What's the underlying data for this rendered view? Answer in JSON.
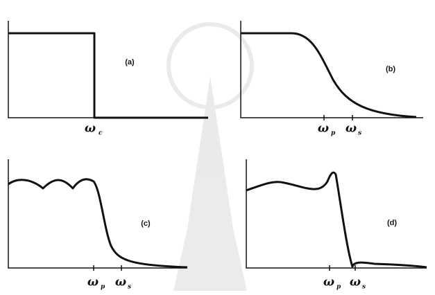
{
  "panels": [
    {
      "label": "(a)",
      "ticks": [
        {
          "symbol": "ω",
          "sub": "c"
        }
      ]
    },
    {
      "label": "(b)",
      "ticks": [
        {
          "symbol": "ω",
          "sub": "p"
        },
        {
          "symbol": "ω",
          "sub": "s"
        }
      ]
    },
    {
      "label": "(c)",
      "ticks": [
        {
          "symbol": "ω",
          "sub": "p"
        },
        {
          "symbol": "ω",
          "sub": "s"
        }
      ]
    },
    {
      "label": "(d)",
      "ticks": [
        {
          "symbol": "ω",
          "sub": "p"
        },
        {
          "symbol": "ω",
          "sub": "s"
        }
      ]
    }
  ]
}
